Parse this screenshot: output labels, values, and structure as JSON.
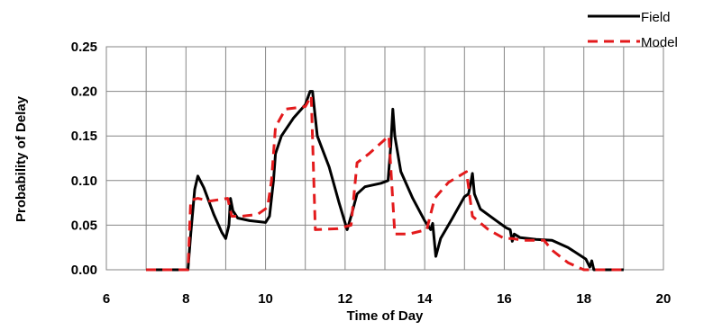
{
  "chart_data": {
    "type": "line",
    "title": "",
    "xlabel": "Time of Day",
    "ylabel": "Probability of Delay",
    "xlim": [
      6,
      20
    ],
    "ylim": [
      0,
      0.25
    ],
    "x_ticks": [
      "6",
      "8",
      "10",
      "12",
      "14",
      "16",
      "18",
      "20"
    ],
    "y_ticks": [
      "0.00",
      "0.05",
      "0.10",
      "0.15",
      "0.20",
      "0.25"
    ],
    "x_tick_values": [
      6,
      8,
      10,
      12,
      14,
      16,
      18,
      20
    ],
    "y_tick_values": [
      0,
      0.05,
      0.1,
      0.15,
      0.2,
      0.25
    ],
    "grid": true,
    "legend_position": "top-right",
    "series": [
      {
        "name": "Field",
        "color": "#000000",
        "style": "solid",
        "points": [
          [
            7.0,
            0.0
          ],
          [
            8.05,
            0.0
          ],
          [
            8.12,
            0.04
          ],
          [
            8.22,
            0.09
          ],
          [
            8.3,
            0.105
          ],
          [
            8.45,
            0.092
          ],
          [
            8.7,
            0.062
          ],
          [
            8.9,
            0.042
          ],
          [
            9.0,
            0.035
          ],
          [
            9.08,
            0.05
          ],
          [
            9.12,
            0.08
          ],
          [
            9.18,
            0.066
          ],
          [
            9.3,
            0.058
          ],
          [
            9.6,
            0.055
          ],
          [
            10.0,
            0.053
          ],
          [
            10.1,
            0.06
          ],
          [
            10.2,
            0.1
          ],
          [
            10.25,
            0.13
          ],
          [
            10.4,
            0.15
          ],
          [
            10.7,
            0.17
          ],
          [
            11.0,
            0.185
          ],
          [
            11.12,
            0.2
          ],
          [
            11.18,
            0.2
          ],
          [
            11.3,
            0.15
          ],
          [
            11.6,
            0.115
          ],
          [
            11.85,
            0.075
          ],
          [
            12.05,
            0.045
          ],
          [
            12.15,
            0.06
          ],
          [
            12.3,
            0.085
          ],
          [
            12.5,
            0.093
          ],
          [
            12.9,
            0.097
          ],
          [
            13.08,
            0.1
          ],
          [
            13.15,
            0.14
          ],
          [
            13.2,
            0.18
          ],
          [
            13.25,
            0.15
          ],
          [
            13.4,
            0.11
          ],
          [
            13.7,
            0.08
          ],
          [
            14.0,
            0.055
          ],
          [
            14.15,
            0.045
          ],
          [
            14.2,
            0.052
          ],
          [
            14.28,
            0.015
          ],
          [
            14.4,
            0.035
          ],
          [
            14.7,
            0.058
          ],
          [
            15.0,
            0.082
          ],
          [
            15.1,
            0.085
          ],
          [
            15.15,
            0.095
          ],
          [
            15.2,
            0.108
          ],
          [
            15.25,
            0.085
          ],
          [
            15.4,
            0.068
          ],
          [
            15.8,
            0.055
          ],
          [
            16.05,
            0.047
          ],
          [
            16.15,
            0.045
          ],
          [
            16.2,
            0.032
          ],
          [
            16.25,
            0.04
          ],
          [
            16.4,
            0.036
          ],
          [
            16.8,
            0.034
          ],
          [
            17.2,
            0.033
          ],
          [
            17.6,
            0.025
          ],
          [
            18.05,
            0.012
          ],
          [
            18.15,
            0.003
          ],
          [
            18.2,
            0.01
          ],
          [
            18.25,
            0.0
          ],
          [
            18.6,
            0.0
          ],
          [
            19.0,
            0.0
          ]
        ]
      },
      {
        "name": "Model",
        "color": "#e31a1c",
        "style": "dashed",
        "points": [
          [
            7.0,
            0.0
          ],
          [
            8.05,
            0.0
          ],
          [
            8.12,
            0.078
          ],
          [
            8.3,
            0.08
          ],
          [
            8.6,
            0.077
          ],
          [
            9.05,
            0.08
          ],
          [
            9.15,
            0.06
          ],
          [
            9.4,
            0.06
          ],
          [
            9.8,
            0.062
          ],
          [
            10.05,
            0.07
          ],
          [
            10.15,
            0.1
          ],
          [
            10.25,
            0.16
          ],
          [
            10.5,
            0.18
          ],
          [
            11.0,
            0.183
          ],
          [
            11.15,
            0.195
          ],
          [
            11.25,
            0.045
          ],
          [
            11.8,
            0.046
          ],
          [
            12.15,
            0.05
          ],
          [
            12.3,
            0.12
          ],
          [
            12.6,
            0.13
          ],
          [
            13.1,
            0.15
          ],
          [
            13.25,
            0.04
          ],
          [
            13.6,
            0.04
          ],
          [
            14.05,
            0.045
          ],
          [
            14.25,
            0.08
          ],
          [
            14.6,
            0.098
          ],
          [
            15.05,
            0.11
          ],
          [
            15.2,
            0.06
          ],
          [
            15.6,
            0.045
          ],
          [
            16.0,
            0.035
          ],
          [
            16.2,
            0.035
          ],
          [
            16.5,
            0.033
          ],
          [
            17.0,
            0.033
          ],
          [
            17.2,
            0.022
          ],
          [
            17.6,
            0.008
          ],
          [
            18.0,
            0.0
          ],
          [
            18.5,
            0.0
          ],
          [
            19.0,
            0.0
          ]
        ]
      }
    ]
  }
}
